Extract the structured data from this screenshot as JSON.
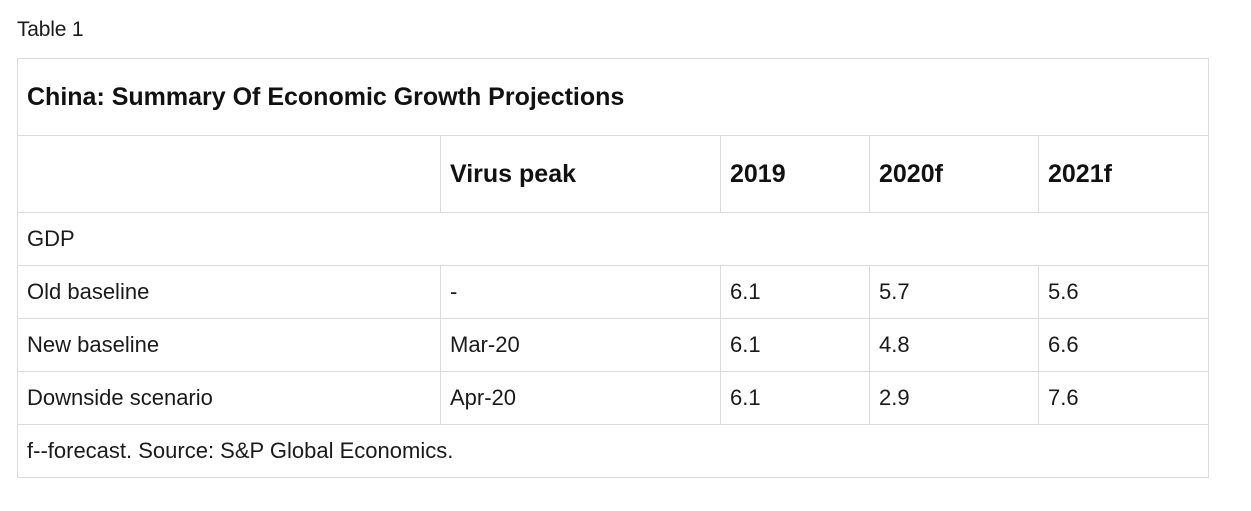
{
  "caption": "Table 1",
  "table": {
    "title": "China: Summary Of Economic Growth Projections",
    "headers": [
      "",
      "Virus peak",
      "2019",
      "2020f",
      "2021f"
    ],
    "section_label": "GDP",
    "rows": [
      [
        "Old baseline",
        "-",
        "6.1",
        "5.7",
        "5.6"
      ],
      [
        "New baseline",
        "Mar-20",
        "6.1",
        "4.8",
        "6.6"
      ],
      [
        "Downside scenario",
        "Apr-20",
        "6.1",
        "2.9",
        "7.6"
      ]
    ],
    "footnote": "f--forecast. Source: S&P Global Economics."
  }
}
